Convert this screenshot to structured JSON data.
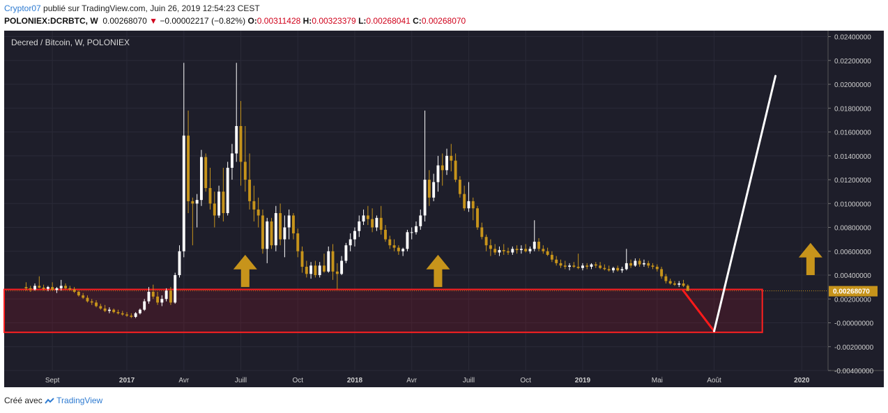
{
  "header": {
    "author": "Cryptor07",
    "published_text": "publié sur TradingView.com, Juin 26, 2019 12:54:23 CEST",
    "symbol": "POLONIEX:DCRBTC, W",
    "last_price": "0.00268070",
    "change": "−0.00002217 (−0.82%)",
    "open_label": "O:",
    "open": "0.00311428",
    "high_label": "H:",
    "high": "0.00323379",
    "low_label": "L:",
    "low": "0.00268041",
    "close_label": "C:",
    "close": "0.00268070"
  },
  "chart_title": "Decred / Bitcoin, W, POLONIEX",
  "price_tag": "0.00268070",
  "footer": {
    "made_with": "Créé avec",
    "brand": "TradingView"
  },
  "colors": {
    "background": "#1e1e2a",
    "up": "#ffffff",
    "down": "#c7941b",
    "zone": "#ff2020",
    "arrow": "#c7941b",
    "projection": "#ffffff",
    "drop": "#ff1a1a"
  },
  "chart_data": {
    "type": "candlestick",
    "title": "Decred / Bitcoin, W, POLONIEX",
    "y_ticks": [
      "0.02400000",
      "0.02200000",
      "0.02000000",
      "0.01800000",
      "0.01600000",
      "0.01400000",
      "0.01200000",
      "0.01000000",
      "0.00800000",
      "0.00600000",
      "0.00400000",
      "0.00200000",
      "-0.00000000",
      "-0.00200000",
      "-0.00400000"
    ],
    "ylim": [
      -0.004,
      0.0245
    ],
    "x_ticks": [
      {
        "label": "Sept",
        "week": 6
      },
      {
        "label": "2017",
        "week": 23
      },
      {
        "label": "Avr",
        "week": 36
      },
      {
        "label": "Juill",
        "week": 49
      },
      {
        "label": "Oct",
        "week": 62
      },
      {
        "label": "2018",
        "week": 75
      },
      {
        "label": "Avr",
        "week": 88
      },
      {
        "label": "Juill",
        "week": 101
      },
      {
        "label": "Oct",
        "week": 114
      },
      {
        "label": "2019",
        "week": 127
      },
      {
        "label": "Mai",
        "week": 144
      },
      {
        "label": "Août",
        "week": 157
      },
      {
        "label": "2020",
        "week": 177
      }
    ],
    "x_range_weeks": [
      -5,
      183
    ],
    "candles": [
      [
        0.003,
        0.0034,
        0.0027,
        0.0029
      ],
      [
        0.0029,
        0.0031,
        0.0026,
        0.0028
      ],
      [
        0.0028,
        0.0033,
        0.0027,
        0.0031
      ],
      [
        0.0031,
        0.0039,
        0.0029,
        0.00295
      ],
      [
        0.00295,
        0.0032,
        0.0027,
        0.00285
      ],
      [
        0.00285,
        0.0031,
        0.00265,
        0.003
      ],
      [
        0.003,
        0.0034,
        0.0027,
        0.00275
      ],
      [
        0.00275,
        0.003,
        0.0025,
        0.0029
      ],
      [
        0.0029,
        0.0036,
        0.0027,
        0.0031
      ],
      [
        0.0031,
        0.0033,
        0.0028,
        0.0029
      ],
      [
        0.0029,
        0.0031,
        0.0027,
        0.0028
      ],
      [
        0.0028,
        0.003,
        0.0025,
        0.0026
      ],
      [
        0.0026,
        0.0027,
        0.0022,
        0.0023
      ],
      [
        0.0023,
        0.0025,
        0.002,
        0.0021
      ],
      [
        0.0021,
        0.0023,
        0.0017,
        0.0018
      ],
      [
        0.0018,
        0.002,
        0.0015,
        0.0017
      ],
      [
        0.0017,
        0.0019,
        0.0013,
        0.0014
      ],
      [
        0.0014,
        0.0016,
        0.0011,
        0.0012
      ],
      [
        0.0012,
        0.0015,
        0.0009,
        0.001
      ],
      [
        0.001,
        0.0013,
        0.0008,
        0.0011
      ],
      [
        0.0011,
        0.0012,
        0.0008,
        0.0009
      ],
      [
        0.0009,
        0.0011,
        0.0007,
        0.0008
      ],
      [
        0.0008,
        0.001,
        0.0006,
        0.0007
      ],
      [
        0.0007,
        0.0009,
        0.0005,
        0.0006
      ],
      [
        0.0006,
        0.0008,
        0.0004,
        0.0005
      ],
      [
        0.0005,
        0.0009,
        0.0004,
        0.0008
      ],
      [
        0.0008,
        0.0012,
        0.0007,
        0.0011
      ],
      [
        0.0011,
        0.002,
        0.001,
        0.0018
      ],
      [
        0.0018,
        0.003,
        0.0016,
        0.0026
      ],
      [
        0.0026,
        0.0032,
        0.002,
        0.0022
      ],
      [
        0.0022,
        0.0026,
        0.0015,
        0.0017
      ],
      [
        0.0017,
        0.0023,
        0.0014,
        0.002
      ],
      [
        0.002,
        0.0029,
        0.0018,
        0.0027
      ],
      [
        0.0027,
        0.003,
        0.0015,
        0.0017
      ],
      [
        0.0017,
        0.0042,
        0.0016,
        0.004
      ],
      [
        0.004,
        0.0065,
        0.0038,
        0.006
      ],
      [
        0.006,
        0.0218,
        0.0055,
        0.0157
      ],
      [
        0.0157,
        0.0178,
        0.0092,
        0.0102
      ],
      [
        0.0102,
        0.0105,
        0.0065,
        0.01
      ],
      [
        0.01,
        0.0108,
        0.008,
        0.0103
      ],
      [
        0.0103,
        0.0145,
        0.0098,
        0.0139
      ],
      [
        0.0139,
        0.0142,
        0.011,
        0.0113
      ],
      [
        0.0113,
        0.013,
        0.0095,
        0.01
      ],
      [
        0.01,
        0.011,
        0.008,
        0.009
      ],
      [
        0.009,
        0.0115,
        0.0088,
        0.011
      ],
      [
        0.011,
        0.013,
        0.0085,
        0.0092
      ],
      [
        0.0092,
        0.0135,
        0.009,
        0.013
      ],
      [
        0.013,
        0.015,
        0.012,
        0.0142
      ],
      [
        0.0142,
        0.0218,
        0.0135,
        0.0165
      ],
      [
        0.0165,
        0.0186,
        0.0115,
        0.0135
      ],
      [
        0.0135,
        0.0165,
        0.011,
        0.012
      ],
      [
        0.012,
        0.0142,
        0.0095,
        0.0102
      ],
      [
        0.0102,
        0.0115,
        0.0085,
        0.0095
      ],
      [
        0.0095,
        0.0105,
        0.008,
        0.009
      ],
      [
        0.009,
        0.0095,
        0.0058,
        0.0062
      ],
      [
        0.0062,
        0.0088,
        0.005,
        0.0085
      ],
      [
        0.0085,
        0.0088,
        0.0062,
        0.0065
      ],
      [
        0.0065,
        0.0098,
        0.006,
        0.0092
      ],
      [
        0.0092,
        0.01,
        0.0065,
        0.007
      ],
      [
        0.007,
        0.009,
        0.0055,
        0.008
      ],
      [
        0.008,
        0.0095,
        0.007,
        0.009
      ],
      [
        0.009,
        0.0092,
        0.007,
        0.0075
      ],
      [
        0.0075,
        0.0079,
        0.0055,
        0.006
      ],
      [
        0.006,
        0.0064,
        0.0042,
        0.0047
      ],
      [
        0.0047,
        0.0052,
        0.0038,
        0.0041
      ],
      [
        0.0041,
        0.0051,
        0.0037,
        0.0048
      ],
      [
        0.0048,
        0.0052,
        0.0038,
        0.004
      ],
      [
        0.004,
        0.0051,
        0.0038,
        0.0048
      ],
      [
        0.0048,
        0.0058,
        0.0042,
        0.0043
      ],
      [
        0.0043,
        0.0064,
        0.0042,
        0.006
      ],
      [
        0.006,
        0.0066,
        0.0036,
        0.0043
      ],
      [
        0.0043,
        0.005,
        0.0028,
        0.0041
      ],
      [
        0.0041,
        0.0056,
        0.004,
        0.0052
      ],
      [
        0.0052,
        0.0067,
        0.005,
        0.0065
      ],
      [
        0.0065,
        0.0075,
        0.006,
        0.007
      ],
      [
        0.007,
        0.008,
        0.0064,
        0.0077
      ],
      [
        0.0077,
        0.009,
        0.0072,
        0.0085
      ],
      [
        0.0085,
        0.0095,
        0.0082,
        0.009
      ],
      [
        0.009,
        0.0098,
        0.0082,
        0.0087
      ],
      [
        0.0087,
        0.0096,
        0.0076,
        0.008
      ],
      [
        0.008,
        0.009,
        0.0077,
        0.0088
      ],
      [
        0.0088,
        0.0098,
        0.0074,
        0.0078
      ],
      [
        0.0078,
        0.0082,
        0.0068,
        0.007
      ],
      [
        0.007,
        0.0073,
        0.0062,
        0.0065
      ],
      [
        0.0065,
        0.007,
        0.006,
        0.0063
      ],
      [
        0.0063,
        0.0065,
        0.0057,
        0.006
      ],
      [
        0.006,
        0.0063,
        0.0056,
        0.0062
      ],
      [
        0.0062,
        0.0078,
        0.006,
        0.0076
      ],
      [
        0.0076,
        0.008,
        0.007,
        0.0076
      ],
      [
        0.0076,
        0.0085,
        0.0074,
        0.0081
      ],
      [
        0.0081,
        0.0095,
        0.0078,
        0.009
      ],
      [
        0.009,
        0.0178,
        0.0085,
        0.012
      ],
      [
        0.012,
        0.0128,
        0.0098,
        0.0105
      ],
      [
        0.0105,
        0.0125,
        0.0102,
        0.0118
      ],
      [
        0.0118,
        0.014,
        0.011,
        0.0132
      ],
      [
        0.0132,
        0.0142,
        0.0115,
        0.0128
      ],
      [
        0.0128,
        0.0146,
        0.0124,
        0.014
      ],
      [
        0.014,
        0.015,
        0.0127,
        0.0136
      ],
      [
        0.0136,
        0.0142,
        0.0118,
        0.012
      ],
      [
        0.012,
        0.0123,
        0.0105,
        0.0108
      ],
      [
        0.0108,
        0.0115,
        0.0094,
        0.0096
      ],
      [
        0.0096,
        0.0118,
        0.0093,
        0.0102
      ],
      [
        0.0102,
        0.0105,
        0.0086,
        0.0096
      ],
      [
        0.0096,
        0.0098,
        0.0078,
        0.008
      ],
      [
        0.008,
        0.0084,
        0.007,
        0.0072
      ],
      [
        0.0072,
        0.0074,
        0.006,
        0.0065
      ],
      [
        0.0065,
        0.007,
        0.0056,
        0.0062
      ],
      [
        0.0062,
        0.0066,
        0.0057,
        0.0059
      ],
      [
        0.0059,
        0.0064,
        0.0056,
        0.0061
      ],
      [
        0.0061,
        0.0066,
        0.0057,
        0.006
      ],
      [
        0.006,
        0.0063,
        0.0057,
        0.0059
      ],
      [
        0.0059,
        0.0064,
        0.0057,
        0.0062
      ],
      [
        0.0062,
        0.0065,
        0.0058,
        0.0061
      ],
      [
        0.0061,
        0.0065,
        0.0058,
        0.0062
      ],
      [
        0.0062,
        0.0066,
        0.0059,
        0.006
      ],
      [
        0.006,
        0.0064,
        0.0058,
        0.0062
      ],
      [
        0.0062,
        0.0086,
        0.006,
        0.0068
      ],
      [
        0.0068,
        0.0071,
        0.006,
        0.0062
      ],
      [
        0.0062,
        0.0065,
        0.0058,
        0.006
      ],
      [
        0.006,
        0.0063,
        0.0056,
        0.0057
      ],
      [
        0.0057,
        0.006,
        0.0051,
        0.0053
      ],
      [
        0.0053,
        0.0056,
        0.0048,
        0.005
      ],
      [
        0.005,
        0.0053,
        0.0046,
        0.0048
      ],
      [
        0.0048,
        0.0052,
        0.0045,
        0.0047
      ],
      [
        0.0047,
        0.005,
        0.0044,
        0.0048
      ],
      [
        0.0048,
        0.0051,
        0.0046,
        0.0047
      ],
      [
        0.0047,
        0.0058,
        0.0045,
        0.0046
      ],
      [
        0.0046,
        0.005,
        0.0044,
        0.0048
      ],
      [
        0.0048,
        0.005,
        0.0045,
        0.0047
      ],
      [
        0.0047,
        0.005,
        0.0045,
        0.0049
      ],
      [
        0.0049,
        0.0051,
        0.0046,
        0.0048
      ],
      [
        0.0048,
        0.0051,
        0.0045,
        0.0046
      ],
      [
        0.0046,
        0.0049,
        0.0044,
        0.0045
      ],
      [
        0.0045,
        0.0048,
        0.0043,
        0.0044
      ],
      [
        0.0044,
        0.0047,
        0.0042,
        0.0046
      ],
      [
        0.0046,
        0.0048,
        0.0043,
        0.0044
      ],
      [
        0.0044,
        0.0047,
        0.0042,
        0.0045
      ],
      [
        0.0045,
        0.0062,
        0.0044,
        0.005
      ],
      [
        0.005,
        0.0053,
        0.0046,
        0.0048
      ],
      [
        0.0048,
        0.0054,
        0.0047,
        0.0052
      ],
      [
        0.0052,
        0.0054,
        0.0047,
        0.0049
      ],
      [
        0.0049,
        0.0053,
        0.0047,
        0.005
      ],
      [
        0.005,
        0.0052,
        0.0046,
        0.0048
      ],
      [
        0.0048,
        0.005,
        0.0045,
        0.0047
      ],
      [
        0.0047,
        0.0049,
        0.0043,
        0.0045
      ],
      [
        0.0045,
        0.0047,
        0.0037,
        0.0039
      ],
      [
        0.0039,
        0.0041,
        0.0033,
        0.0035
      ],
      [
        0.0035,
        0.0037,
        0.0032,
        0.0033
      ],
      [
        0.0033,
        0.0035,
        0.0031,
        0.0032
      ],
      [
        0.0032,
        0.0035,
        0.003,
        0.0033
      ],
      [
        0.0033,
        0.0036,
        0.003,
        0.0031
      ],
      [
        0.00311,
        0.00323,
        0.00268,
        0.00268
      ]
    ],
    "support_zone": {
      "from_week": -5,
      "to_week": 168,
      "low": -0.0008,
      "high": 0.0028
    },
    "drawings": [
      {
        "type": "arrow-up",
        "week": 50,
        "y_bottom": 0.003,
        "y_top": 0.0057
      },
      {
        "type": "arrow-up",
        "week": 94,
        "y_bottom": 0.003,
        "y_top": 0.0057
      },
      {
        "type": "arrow-up",
        "week": 179,
        "y_bottom": 0.004,
        "y_top": 0.0067
      },
      {
        "type": "line",
        "color": "red",
        "from_week": 150,
        "from_y": 0.00268,
        "to_week": 157,
        "to_y": -0.0007
      },
      {
        "type": "line",
        "color": "white",
        "from_week": 157,
        "from_y": -0.0007,
        "to_week": 171,
        "to_y": 0.0207
      }
    ]
  }
}
